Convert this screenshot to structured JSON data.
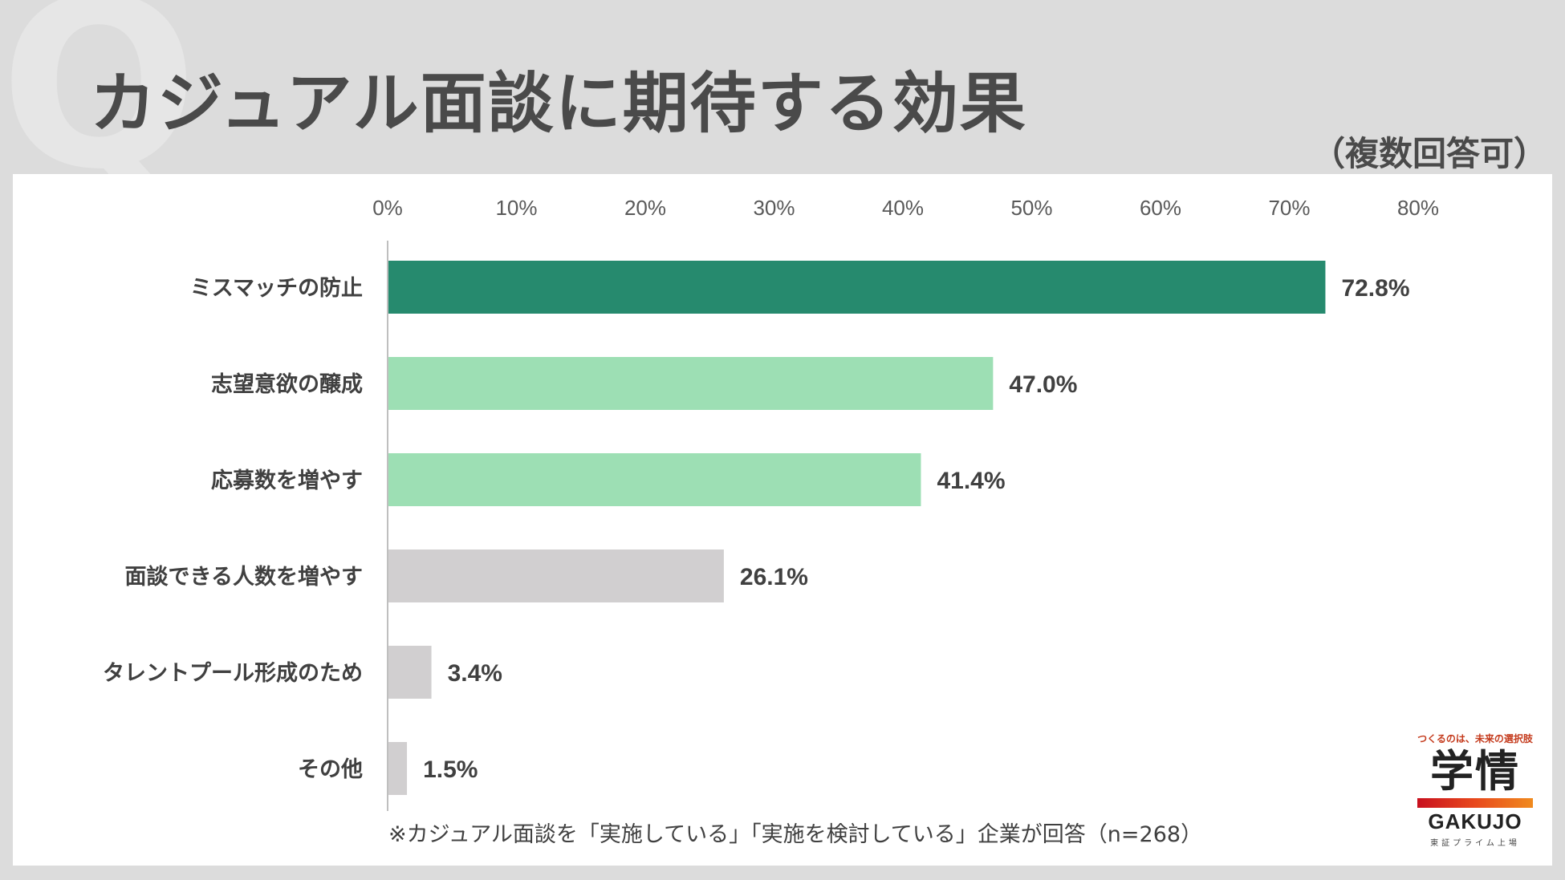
{
  "header": {
    "watermark": "Q",
    "title": "カジュアル面談に期待する効果",
    "subtitle": "（複数回答可）"
  },
  "note": "※カジュアル面談を「実施している」「実施を検討している」企業が回答（n=268）",
  "logo": {
    "tagline": "つくるのは、未来の選択肢",
    "kanji": "学情",
    "english": "GAKUJO",
    "sub": "東証プライム上場"
  },
  "chart_data": {
    "type": "bar",
    "orientation": "horizontal",
    "title": "カジュアル面談に期待する効果",
    "xlabel": "",
    "ylabel": "",
    "xlim": [
      0,
      80
    ],
    "xticks": [
      0,
      10,
      20,
      30,
      40,
      50,
      60,
      70,
      80
    ],
    "tick_suffix": "%",
    "grid": false,
    "categories": [
      "ミスマッチの防止",
      "志望意欲の醸成",
      "応募数を増やす",
      "面談できる人数を増やす",
      "タレントプール形成のため",
      "その他"
    ],
    "values": [
      72.8,
      47.0,
      41.4,
      26.1,
      3.4,
      1.5
    ],
    "value_labels": [
      "72.8%",
      "47.0%",
      "41.4%",
      "26.1%",
      "3.4%",
      "1.5%"
    ],
    "colors": [
      "#268a6e",
      "#9ddfb4",
      "#9ddfb4",
      "#d1cfd0",
      "#d1cfd0",
      "#d1cfd0"
    ]
  }
}
